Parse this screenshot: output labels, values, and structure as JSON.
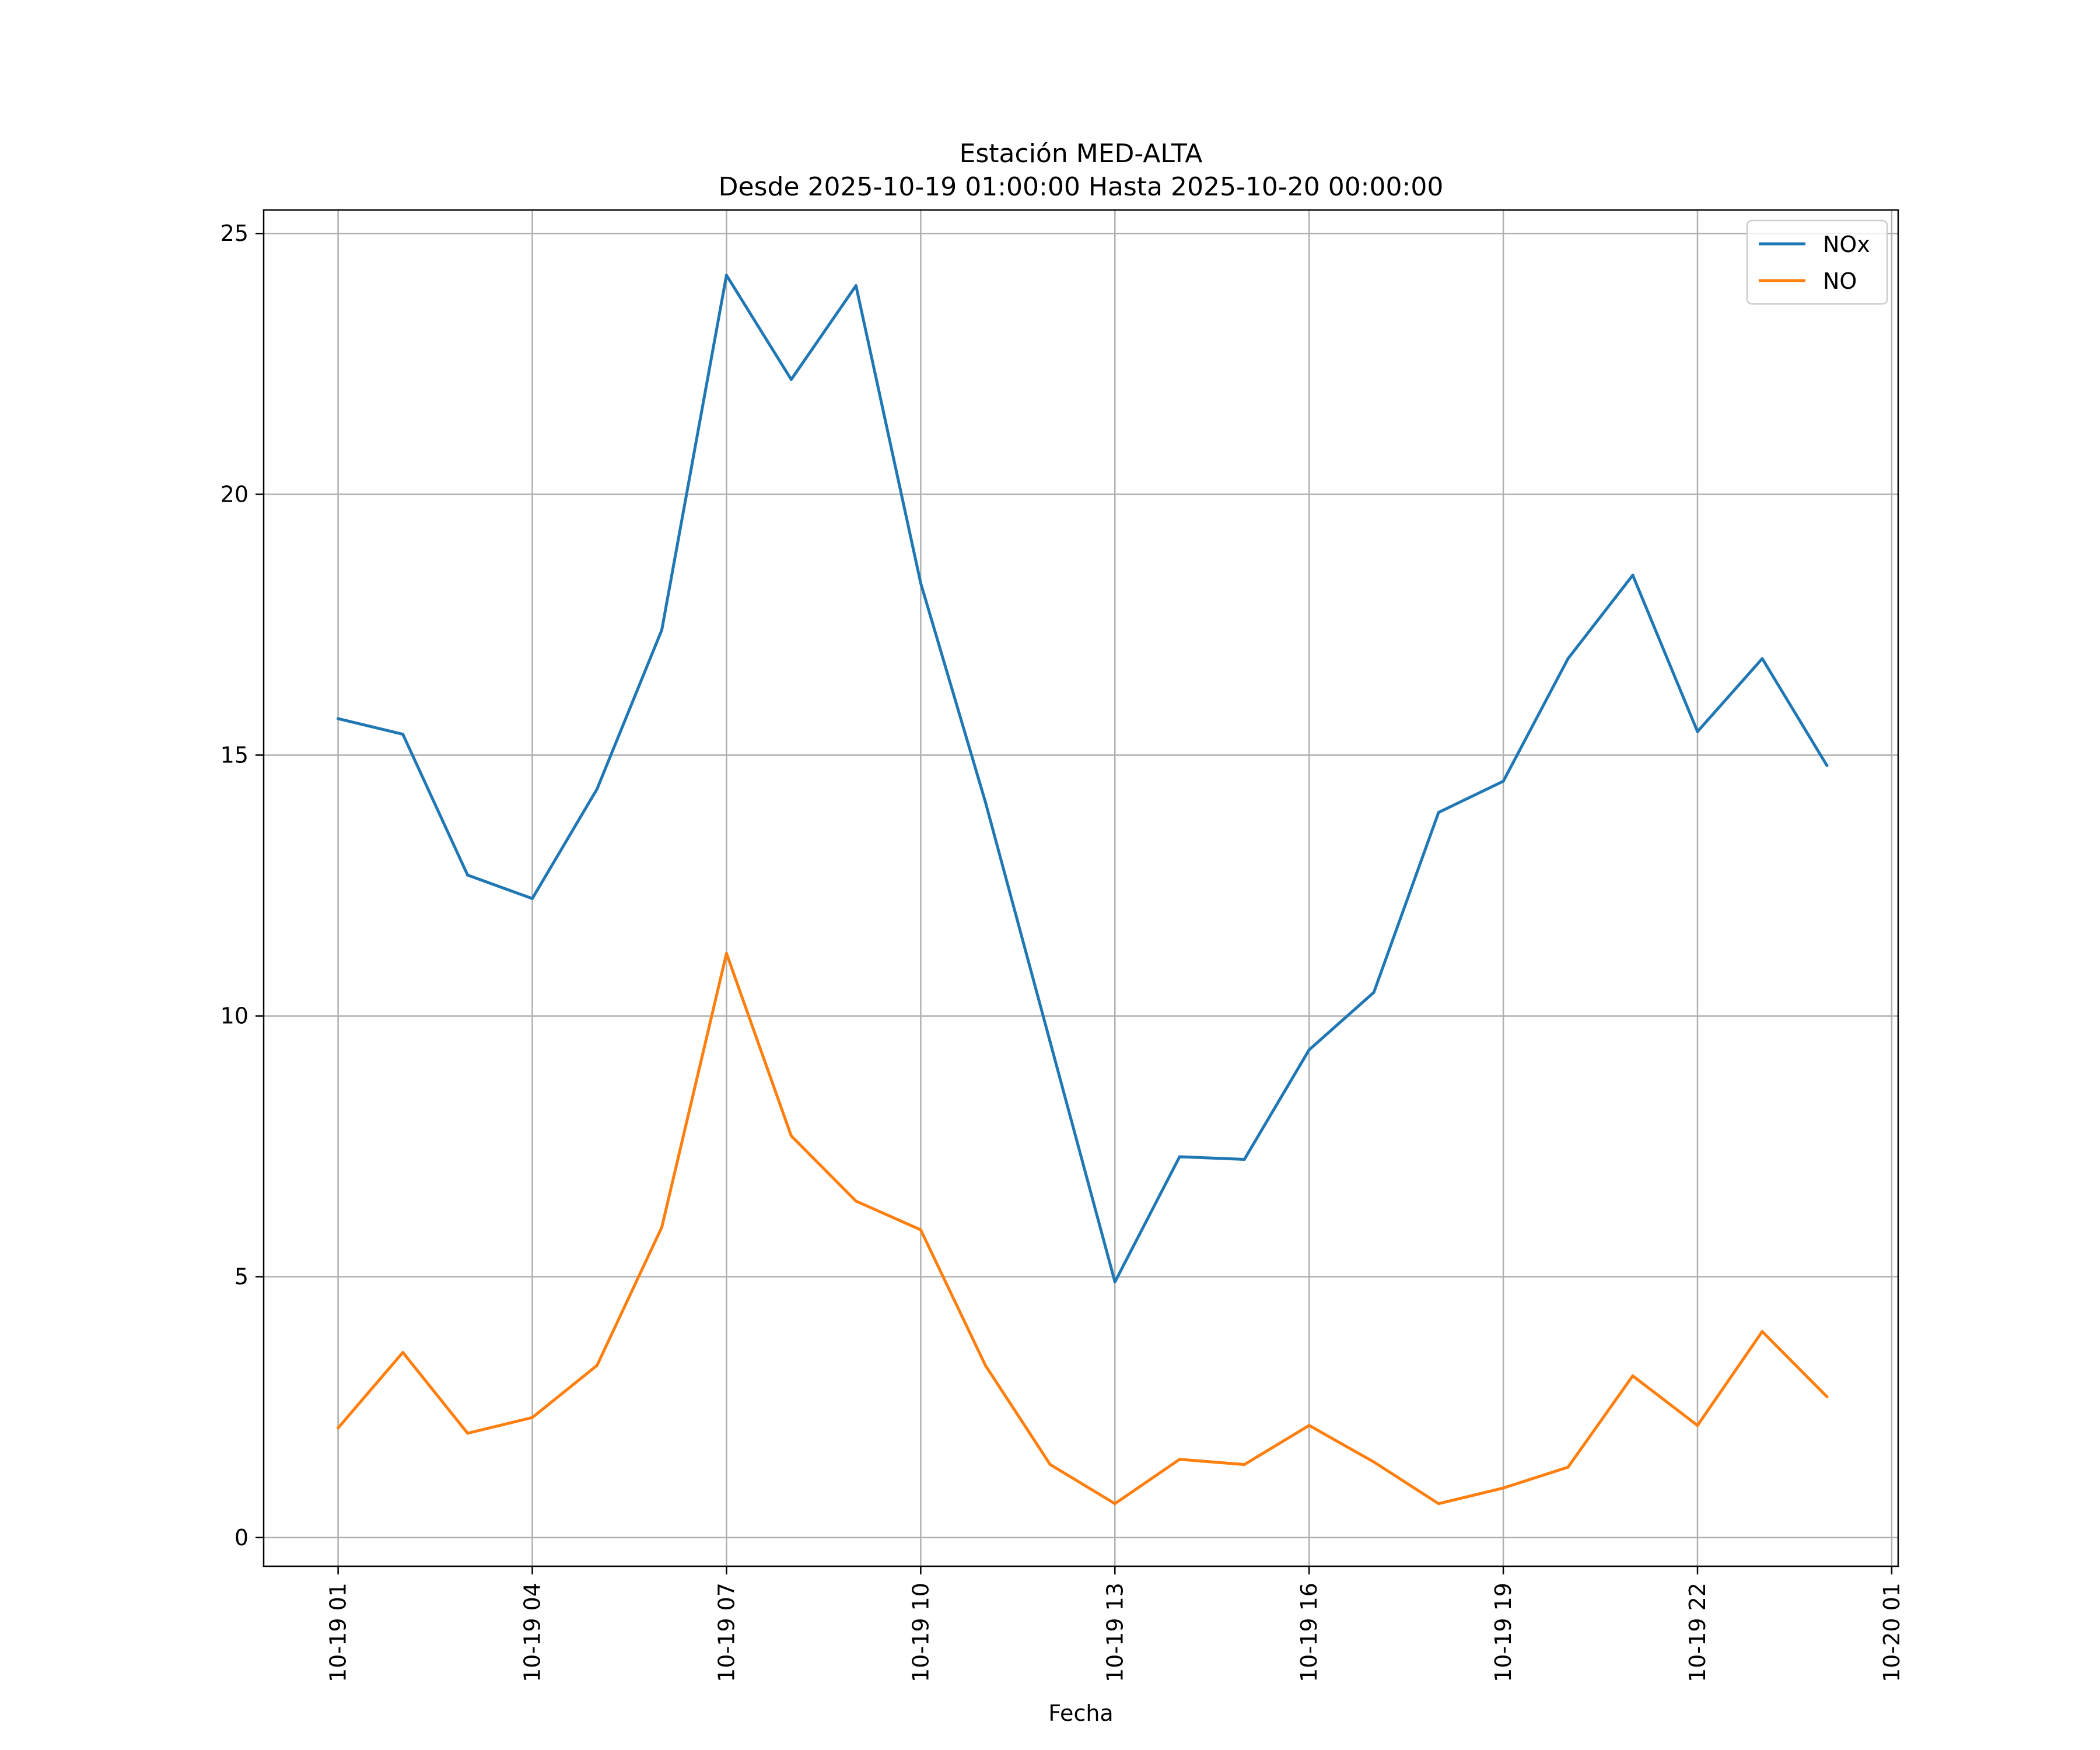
{
  "chart_data": {
    "type": "line",
    "title": "Estación MED-ALTA",
    "subtitle": "Desde 2025-10-19 01:00:00 Hasta 2025-10-20 00:00:00",
    "xlabel": "Fecha",
    "ylabel": "",
    "x": [
      "10-19 01",
      "10-19 02",
      "10-19 03",
      "10-19 04",
      "10-19 05",
      "10-19 06",
      "10-19 07",
      "10-19 08",
      "10-19 09",
      "10-19 10",
      "10-19 11",
      "10-19 12",
      "10-19 13",
      "10-19 14",
      "10-19 15",
      "10-19 16",
      "10-19 17",
      "10-19 18",
      "10-19 19",
      "10-19 20",
      "10-19 21",
      "10-19 22",
      "10-19 23",
      "10-20 00"
    ],
    "x_hours": [
      0,
      1,
      2,
      3,
      4,
      5,
      6,
      7,
      8,
      9,
      10,
      11,
      12,
      13,
      14,
      15,
      16,
      17,
      18,
      19,
      20,
      21,
      22,
      23
    ],
    "xlim_hours": [
      -1.15,
      24.1
    ],
    "xticks": [
      {
        "hour": 0,
        "label": "10-19 01"
      },
      {
        "hour": 3,
        "label": "10-19 04"
      },
      {
        "hour": 6,
        "label": "10-19 07"
      },
      {
        "hour": 9,
        "label": "10-19 10"
      },
      {
        "hour": 12,
        "label": "10-19 13"
      },
      {
        "hour": 15,
        "label": "10-19 16"
      },
      {
        "hour": 18,
        "label": "10-19 19"
      },
      {
        "hour": 21,
        "label": "10-19 22"
      },
      {
        "hour": 24,
        "label": "10-20 01"
      }
    ],
    "ylim": [
      -0.55,
      25.45
    ],
    "yticks": [
      0,
      5,
      10,
      15,
      20,
      25
    ],
    "grid": true,
    "legend_position": "top-right",
    "series": [
      {
        "name": "NOx",
        "color": "#1f77b4",
        "values": [
          15.7,
          15.4,
          12.7,
          12.25,
          14.35,
          17.4,
          24.2,
          22.2,
          24.0,
          18.3,
          14.1,
          9.5,
          4.9,
          7.3,
          7.25,
          9.35,
          10.45,
          13.9,
          14.5,
          16.85,
          18.45,
          15.45,
          16.85,
          14.8
        ]
      },
      {
        "name": "NO",
        "color": "#ff7f0e",
        "values": [
          2.1,
          3.55,
          2.0,
          2.3,
          3.3,
          5.95,
          11.2,
          7.7,
          6.45,
          5.9,
          3.3,
          1.4,
          0.65,
          1.5,
          1.4,
          2.15,
          1.45,
          0.65,
          0.95,
          1.35,
          3.1,
          2.15,
          3.95,
          2.7
        ]
      }
    ]
  }
}
